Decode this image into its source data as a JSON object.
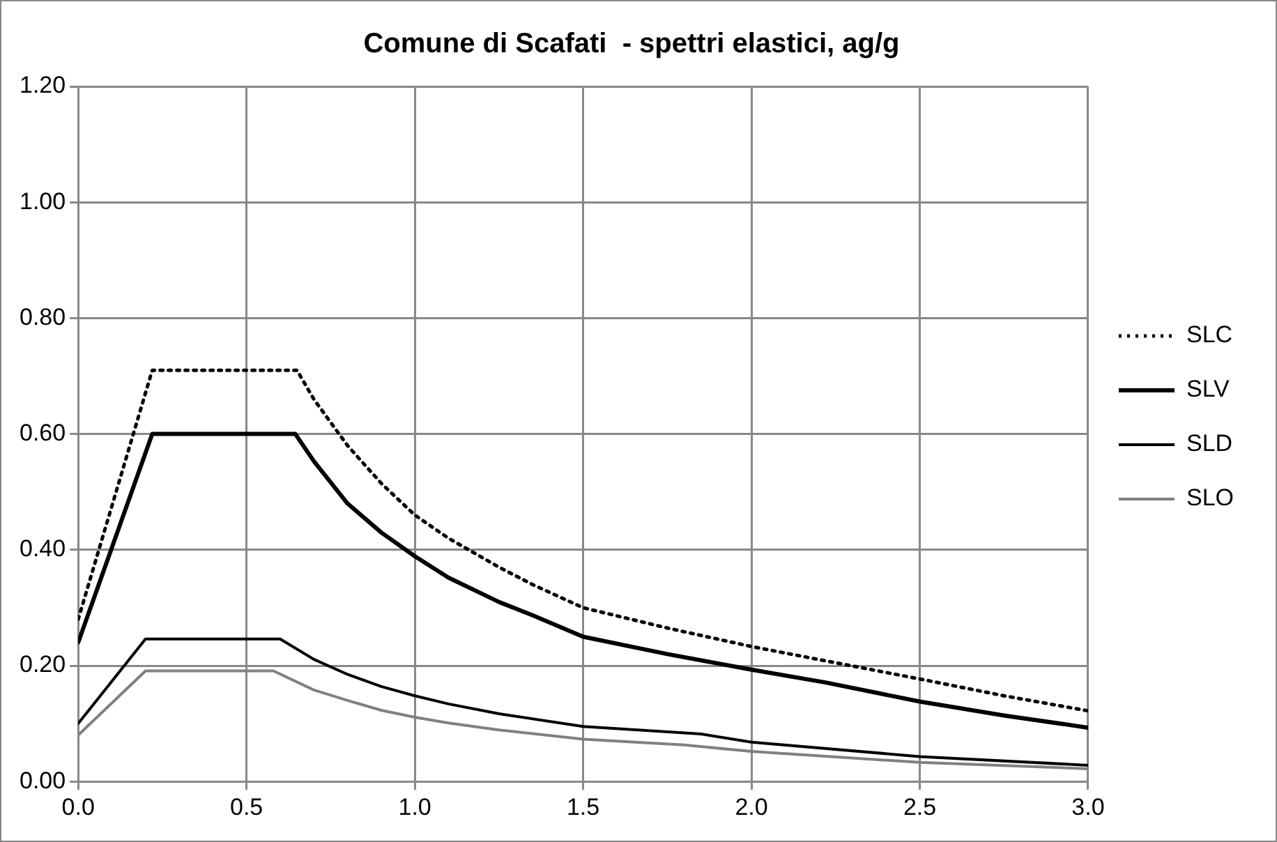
{
  "chart_data": {
    "type": "line",
    "title": "Comune di Scafati  - spettri elastici, ag/g",
    "series": [
      {
        "name": "SLC",
        "color": "#000000",
        "line_style": "dotted",
        "x": [
          0,
          0.22,
          0.65,
          0.7,
          0.8,
          0.9,
          1.0,
          1.1,
          1.25,
          1.35,
          1.5,
          1.75,
          2.0,
          2.25,
          2.5,
          2.75,
          3.0
        ],
        "values": [
          0.28,
          0.71,
          0.71,
          0.66,
          0.58,
          0.515,
          0.46,
          0.42,
          0.37,
          0.34,
          0.3,
          0.265,
          0.233,
          0.205,
          0.177,
          0.148,
          0.122
        ]
      },
      {
        "name": "SLV",
        "color": "#000000",
        "line_style": "solid",
        "x": [
          0,
          0.22,
          0.645,
          0.7,
          0.8,
          0.9,
          1.0,
          1.1,
          1.25,
          1.35,
          1.5,
          1.75,
          2.0,
          2.22,
          2.5,
          2.75,
          3.0
        ],
        "values": [
          0.24,
          0.6,
          0.6,
          0.553,
          0.48,
          0.43,
          0.389,
          0.352,
          0.31,
          0.287,
          0.25,
          0.22,
          0.193,
          0.171,
          0.138,
          0.114,
          0.093
        ]
      },
      {
        "name": "SLD",
        "color": "#000000",
        "line_style": "solid",
        "x": [
          0,
          0.2,
          0.6,
          0.7,
          0.8,
          0.9,
          1.0,
          1.1,
          1.25,
          1.5,
          1.85,
          2.0,
          2.5,
          3.0
        ],
        "values": [
          0.1,
          0.246,
          0.246,
          0.211,
          0.185,
          0.164,
          0.148,
          0.134,
          0.117,
          0.095,
          0.082,
          0.068,
          0.043,
          0.028
        ]
      },
      {
        "name": "SLO",
        "color": "#808080",
        "line_style": "solid",
        "x": [
          0,
          0.2,
          0.58,
          0.7,
          0.8,
          0.9,
          1.0,
          1.1,
          1.25,
          1.5,
          1.8,
          2.0,
          2.5,
          3.0
        ],
        "values": [
          0.08,
          0.191,
          0.191,
          0.158,
          0.14,
          0.123,
          0.111,
          0.101,
          0.089,
          0.073,
          0.063,
          0.052,
          0.033,
          0.022
        ]
      }
    ],
    "xlim": [
      0,
      3
    ],
    "xticks": [
      {
        "value": 0,
        "label": "0.0"
      },
      {
        "value": 0.5,
        "label": "0.5"
      },
      {
        "value": 1,
        "label": "1.0"
      },
      {
        "value": 1.5,
        "label": "1.5"
      },
      {
        "value": 2,
        "label": "2.0"
      },
      {
        "value": 2.5,
        "label": "2.5"
      },
      {
        "value": 3,
        "label": "3.0"
      }
    ],
    "ylim": [
      0,
      1.2
    ],
    "yticks": [
      {
        "value": 0,
        "label": "0.00"
      },
      {
        "value": 0.2,
        "label": "0.20"
      },
      {
        "value": 0.4,
        "label": "0.40"
      },
      {
        "value": 0.6,
        "label": "0.60"
      },
      {
        "value": 0.8,
        "label": "0.80"
      },
      {
        "value": 1,
        "label": "1.00"
      },
      {
        "value": 1.2,
        "label": "1.20"
      }
    ],
    "grid": true,
    "legend": "right",
    "marker": "none"
  }
}
